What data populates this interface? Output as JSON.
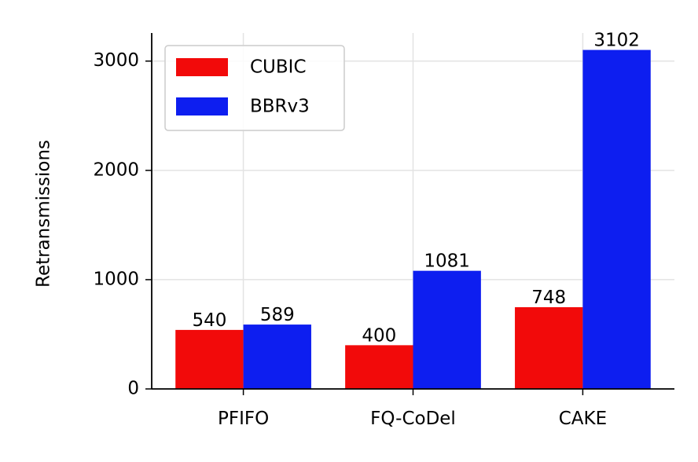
{
  "chart_data": {
    "type": "bar",
    "y_label": "Retransmissions",
    "categories": [
      "PFIFO",
      "FQ-CoDel",
      "CAKE"
    ],
    "series": [
      {
        "name": "CUBIC",
        "color": "#f20a0a",
        "values": [
          540,
          400,
          748
        ]
      },
      {
        "name": "BBRv3",
        "color": "#0d1ef0",
        "values": [
          589,
          1081,
          3102
        ]
      }
    ],
    "ylim": [
      0,
      3257
    ],
    "yticks": [
      0,
      1000,
      2000,
      3000
    ],
    "grid": true,
    "legend": "upper left"
  }
}
